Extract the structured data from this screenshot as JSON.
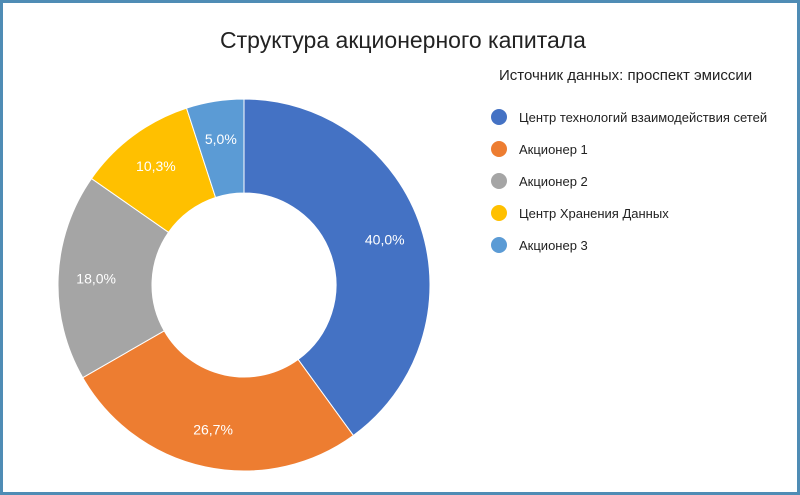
{
  "title": "Структура акционерного капитала",
  "legend_title": "Источник данных: проспект эмиссии",
  "chart_data": {
    "type": "pie",
    "title": "Структура акционерного капитала",
    "donut": true,
    "legend_position": "right",
    "slices": [
      {
        "name": "Центр технологий взаимодействия сетей",
        "value": 40.0,
        "label": "40,0%",
        "color": "#4472c4"
      },
      {
        "name": "Акционер 1",
        "value": 26.7,
        "label": "26,7%",
        "color": "#ed7d31"
      },
      {
        "name": "Акционер 2",
        "value": 18.0,
        "label": "18,0%",
        "color": "#a5a5a5"
      },
      {
        "name": "Центр Хранения Данных",
        "value": 10.3,
        "label": "10,3%",
        "color": "#ffc000"
      },
      {
        "name": "Акционер 3",
        "value": 5.0,
        "label": "5,0%",
        "color": "#5b9bd5"
      }
    ]
  }
}
